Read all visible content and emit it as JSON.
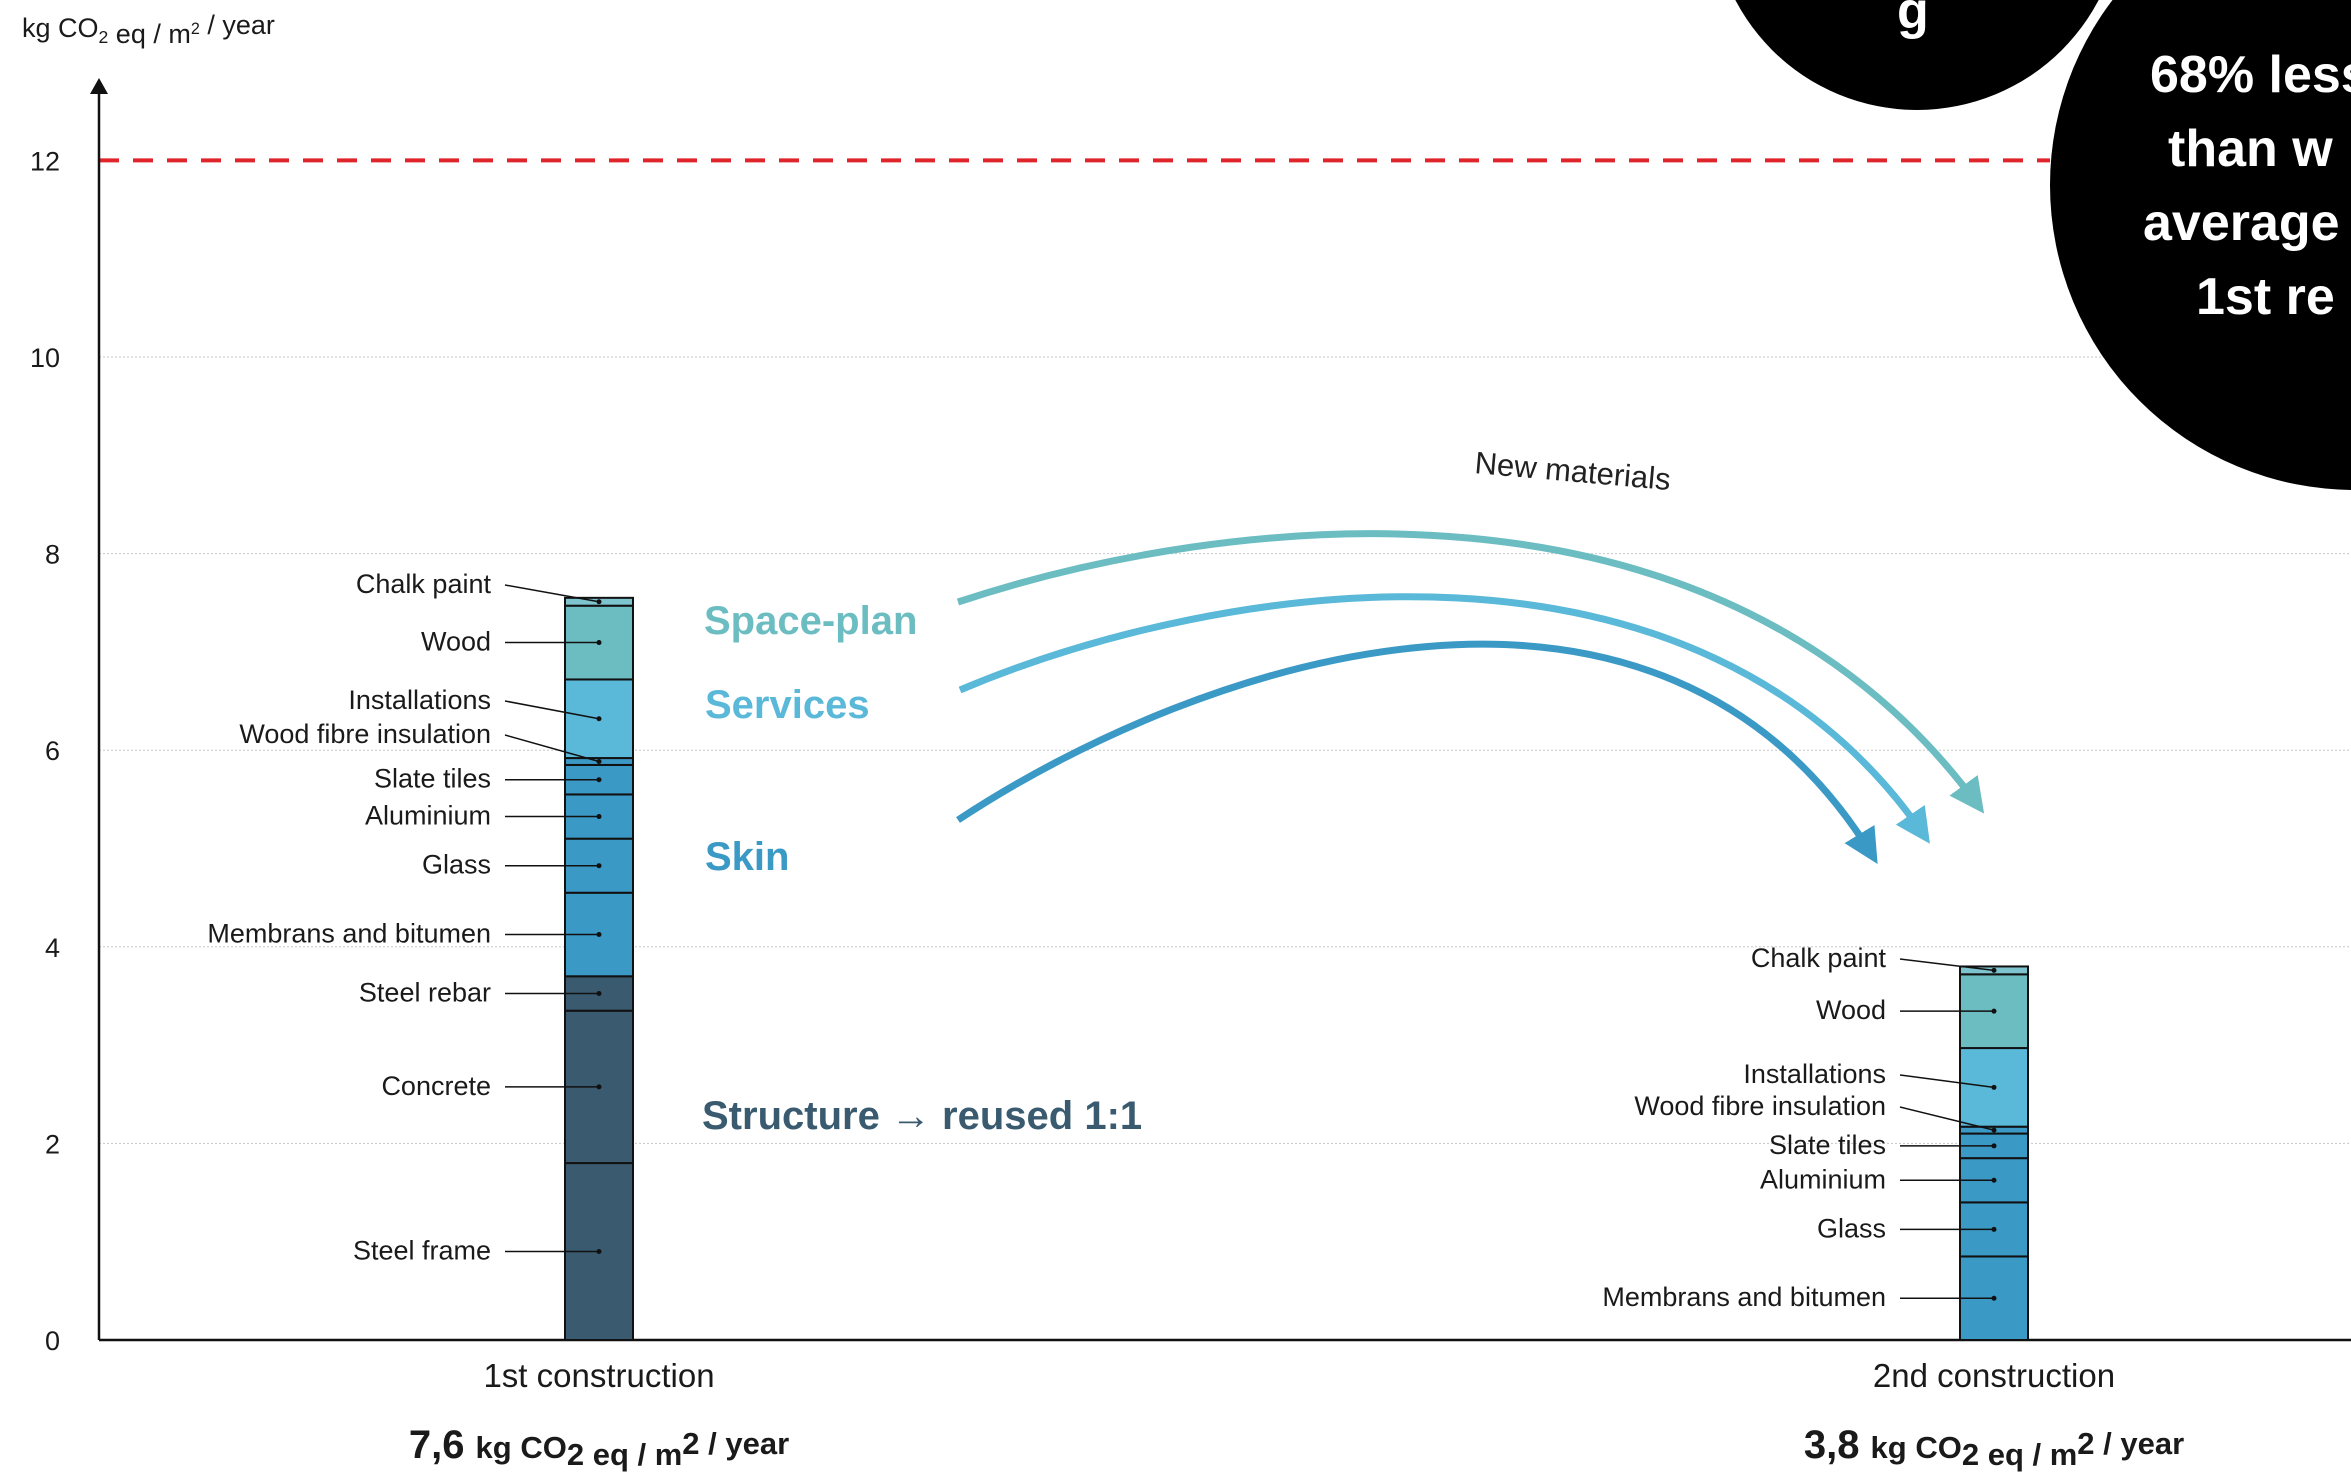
{
  "colors": {
    "structure": "#3a5b6f",
    "skin": "#3b99c6",
    "services": "#5ab8d8",
    "space_plan": "#6cbdc2",
    "thin_top": "#7ec4cf",
    "threshold": "#e0242b",
    "callout_bg": "#000000"
  },
  "chart_data": {
    "type": "bar",
    "stacked": true,
    "ylabel": "kg CO₂ eq / m² / year",
    "ylim": [
      0,
      12.5
    ],
    "yticks": [
      0,
      2,
      4,
      6,
      8,
      10,
      12
    ],
    "grid": true,
    "threshold": {
      "value": 12,
      "style": "dashed",
      "color": "#e0242b"
    },
    "categories": [
      "1st construction",
      "2nd construction"
    ],
    "bars": [
      {
        "category": "1st construction",
        "total_number": "7,6",
        "total_unit": "kg CO₂ eq / m² / year",
        "segments": [
          {
            "label": "Steel frame",
            "from": 0,
            "to": 1.8,
            "group": "structure"
          },
          {
            "label": "Concrete",
            "from": 1.8,
            "to": 3.35,
            "group": "structure"
          },
          {
            "label": "Steel rebar",
            "from": 3.35,
            "to": 3.7,
            "group": "structure"
          },
          {
            "label": "Membrans and bitumen",
            "from": 3.7,
            "to": 4.55,
            "group": "skin"
          },
          {
            "label": "Glass",
            "from": 4.55,
            "to": 5.1,
            "group": "skin"
          },
          {
            "label": "Aluminium",
            "from": 5.1,
            "to": 5.55,
            "group": "skin"
          },
          {
            "label": "Slate tiles",
            "from": 5.55,
            "to": 5.85,
            "group": "skin"
          },
          {
            "label": "Wood fibre insulation",
            "from": 5.85,
            "to": 5.92,
            "group": "skin"
          },
          {
            "label": "Installations",
            "from": 5.92,
            "to": 6.72,
            "group": "services"
          },
          {
            "label": "Wood",
            "from": 6.72,
            "to": 7.47,
            "group": "space_plan"
          },
          {
            "label": "Chalk paint",
            "from": 7.47,
            "to": 7.55,
            "group": "thin_top"
          }
        ]
      },
      {
        "category": "2nd construction",
        "total_number": "3,8",
        "total_unit": "kg CO₂ eq / m² / year",
        "segments": [
          {
            "label": "Membrans and bitumen",
            "from": 0,
            "to": 0.85,
            "group": "skin"
          },
          {
            "label": "Glass",
            "from": 0.85,
            "to": 1.4,
            "group": "skin"
          },
          {
            "label": "Aluminium",
            "from": 1.4,
            "to": 1.85,
            "group": "skin"
          },
          {
            "label": "Slate tiles",
            "from": 1.85,
            "to": 2.1,
            "group": "skin"
          },
          {
            "label": "Wood fibre insulation",
            "from": 2.1,
            "to": 2.17,
            "group": "skin"
          },
          {
            "label": "Installations",
            "from": 2.17,
            "to": 2.97,
            "group": "services"
          },
          {
            "label": "Wood",
            "from": 2.97,
            "to": 3.72,
            "group": "space_plan"
          },
          {
            "label": "Chalk paint",
            "from": 3.72,
            "to": 3.8,
            "group": "thin_top"
          }
        ]
      }
    ],
    "annotations": [
      {
        "text": "Space-plan",
        "group": "space_plan"
      },
      {
        "text": "Services",
        "group": "services"
      },
      {
        "text": "Skin",
        "group": "skin"
      },
      {
        "text": "Structure → reused 1:1",
        "group": "structure"
      },
      {
        "text": "New materials",
        "group": "note"
      }
    ],
    "callouts": [
      {
        "lines": [
          "g"
        ]
      },
      {
        "lines": [
          "68% less",
          "than w",
          "average",
          "1st re"
        ]
      }
    ]
  }
}
